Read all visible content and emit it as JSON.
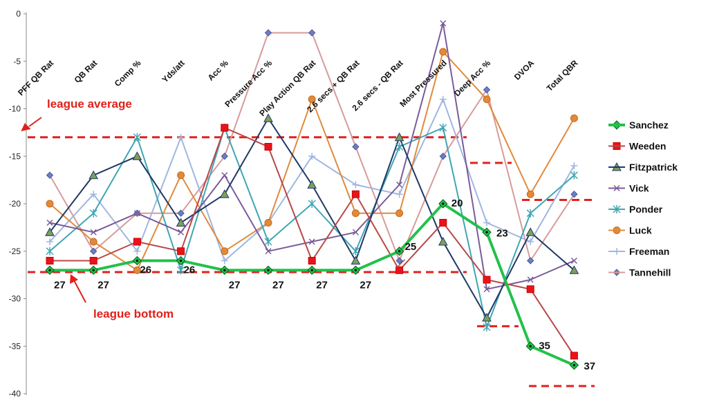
{
  "chart_data": {
    "type": "line",
    "categories": [
      "PFF QB Rat",
      "QB Rat",
      "Comp %",
      "Yds/att",
      "Acc %",
      "Pressure Acc %",
      "Play Action QB Rat",
      "2.6 secs + QB Rat",
      "2.6 secs - QB Rat",
      "Most Pressured",
      "Deep Acc %",
      "DVOA",
      "Total QBR"
    ],
    "ylim": [
      -40,
      0
    ],
    "yticks": [
      0,
      -5,
      -10,
      -15,
      -20,
      -25,
      -30,
      -35,
      -40
    ],
    "legend_position": "right",
    "series": [
      {
        "name": "Sanchez",
        "color": "#22c14a",
        "marker": "diamond",
        "values": [
          -27,
          -27,
          -26,
          -26,
          -27,
          -27,
          -27,
          -27,
          -25,
          -20,
          -23,
          -35,
          -37
        ]
      },
      {
        "name": "Weeden",
        "color": "#b84747",
        "marker": "square",
        "values": [
          -26,
          -26,
          -24,
          -25,
          -12,
          -14,
          -26,
          -19,
          -27,
          -22,
          -28,
          -29,
          -36
        ]
      },
      {
        "name": "Fitzpatrick",
        "color": "#1f3864",
        "marker": "triangle",
        "values": [
          -23,
          -17,
          -15,
          -22,
          -19,
          -11,
          -18,
          -26,
          -13,
          -24,
          -32,
          -23,
          -27
        ]
      },
      {
        "name": "Vick",
        "color": "#7a5a9a",
        "marker": "x",
        "values": [
          -22,
          -23,
          -21,
          -23,
          -17,
          -25,
          -24,
          -23,
          -18,
          -1,
          -29,
          -28,
          -26
        ]
      },
      {
        "name": "Ponder",
        "color": "#3ea6b3",
        "marker": "star",
        "values": [
          -25,
          -21,
          -13,
          -27,
          -12,
          -24,
          -20,
          -25,
          -14,
          -12,
          -33,
          -21,
          -17
        ]
      },
      {
        "name": "Luck",
        "color": "#e08a3c",
        "marker": "circle",
        "values": [
          -20,
          -24,
          -27,
          -17,
          -25,
          -22,
          -9,
          -21,
          -21,
          -4,
          -9,
          -19,
          -11
        ]
      },
      {
        "name": "Freeman",
        "color": "#9fb6e0",
        "marker": "plus",
        "values": [
          -24,
          -19,
          -25,
          -13,
          -26,
          -22,
          -15,
          -18,
          -19,
          -9,
          -22,
          -24,
          -16
        ]
      },
      {
        "name": "Tannehill",
        "color": "#d89a9a",
        "marker": "diamond",
        "values": [
          -17,
          -25,
          -21,
          -21,
          -15,
          -2,
          -2,
          -14,
          -26,
          -15,
          -8,
          -26,
          -19
        ]
      }
    ],
    "data_labels": {
      "series": "Sanchez",
      "values": [
        "27",
        "27",
        "26",
        "26",
        "27",
        "27",
        "27",
        "27",
        "25",
        "20",
        "23",
        "35",
        "37"
      ]
    },
    "annotations": {
      "league_average": "league average",
      "league_bottom": "league bottom"
    }
  }
}
